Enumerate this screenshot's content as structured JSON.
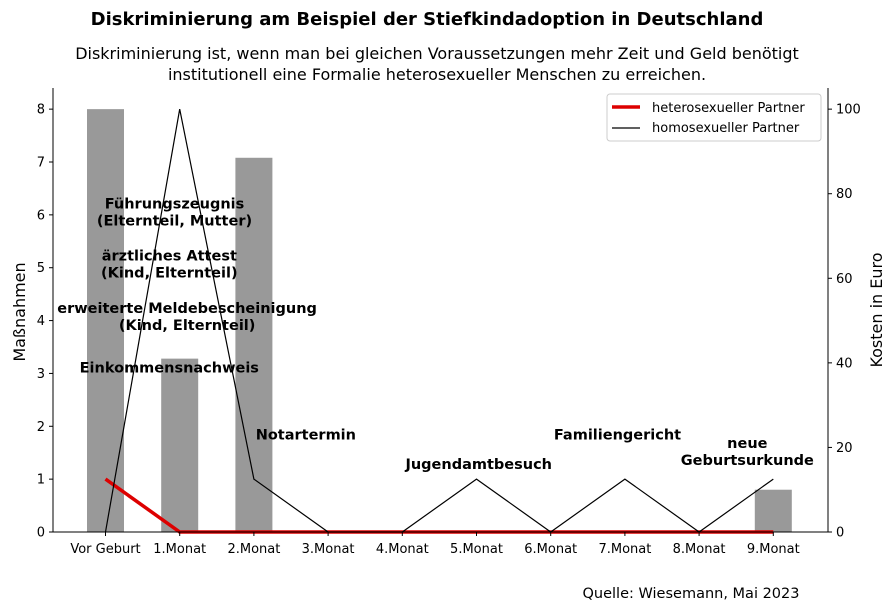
{
  "chart_data": {
    "type": "bar",
    "title": "Diskriminierung am Beispiel der Stiefkindadoption in Deutschland",
    "subtitle_lines": [
      "Diskriminierung ist, wenn man bei gleichen Voraussetzungen mehr Zeit und Geld benötigt",
      "institutionell eine Formalie heterosexueller Menschen zu erreichen."
    ],
    "categories": [
      "Vor Geburt",
      "1.Monat",
      "2.Monat",
      "3.Monat",
      "4.Monat",
      "5.Monat",
      "6.Monat",
      "7.Monat",
      "8.Monat",
      "9.Monat"
    ],
    "bars": {
      "axis": "right",
      "values": [
        100,
        41,
        88.5,
        0,
        0,
        0,
        0,
        0,
        0,
        10
      ],
      "color": "#999999"
    },
    "series": [
      {
        "name": "heterosexueller Partner",
        "axis": "left",
        "values": [
          1,
          0,
          0,
          0,
          0,
          0,
          0,
          0,
          0,
          0
        ],
        "color": "#dd0000",
        "width": 3.5
      },
      {
        "name": "homosexueller Partner",
        "axis": "left",
        "values": [
          0,
          8,
          1,
          0,
          0,
          1,
          0,
          1,
          0,
          1
        ],
        "color": "#000000",
        "width": 1.2
      }
    ],
    "ylabel": "Maßnahmen",
    "ylim": [
      0,
      8.4
    ],
    "yticks": [
      0,
      1,
      2,
      3,
      4,
      5,
      6,
      7,
      8
    ],
    "y2label": "Kosten in Euro",
    "y2lim": [
      0,
      105
    ],
    "y2ticks": [
      0,
      20,
      40,
      60,
      80,
      100
    ],
    "legend_position": "top-right",
    "grid": false,
    "annotations": [
      {
        "lines": [
          "Führungszeugnis",
          "(Elternteil, Mutter)"
        ],
        "x": 0.93,
        "y": 6.05
      },
      {
        "lines": [
          "ärztliches Attest",
          "(Kind, Elternteil)"
        ],
        "x": 0.86,
        "y": 5.07
      },
      {
        "lines": [
          "erweiterte Meldebescheinigung",
          "(Kind, Elternteil)"
        ],
        "x": 1.1,
        "y": 4.08
      },
      {
        "lines": [
          "Einkommensnachweis"
        ],
        "x": 0.86,
        "y": 3.11
      },
      {
        "lines": [
          "Notartermin"
        ],
        "x": 2.7,
        "y": 1.84
      },
      {
        "lines": [
          "Jugendamtbesuch"
        ],
        "x": 5.03,
        "y": 1.29
      },
      {
        "lines": [
          "Familiengericht"
        ],
        "x": 6.9,
        "y": 1.84
      },
      {
        "lines": [
          "neue",
          "Geburtsurkunde"
        ],
        "x": 8.65,
        "y": 1.52
      }
    ],
    "source": "Quelle: Wiesemann, Mai 2023"
  }
}
